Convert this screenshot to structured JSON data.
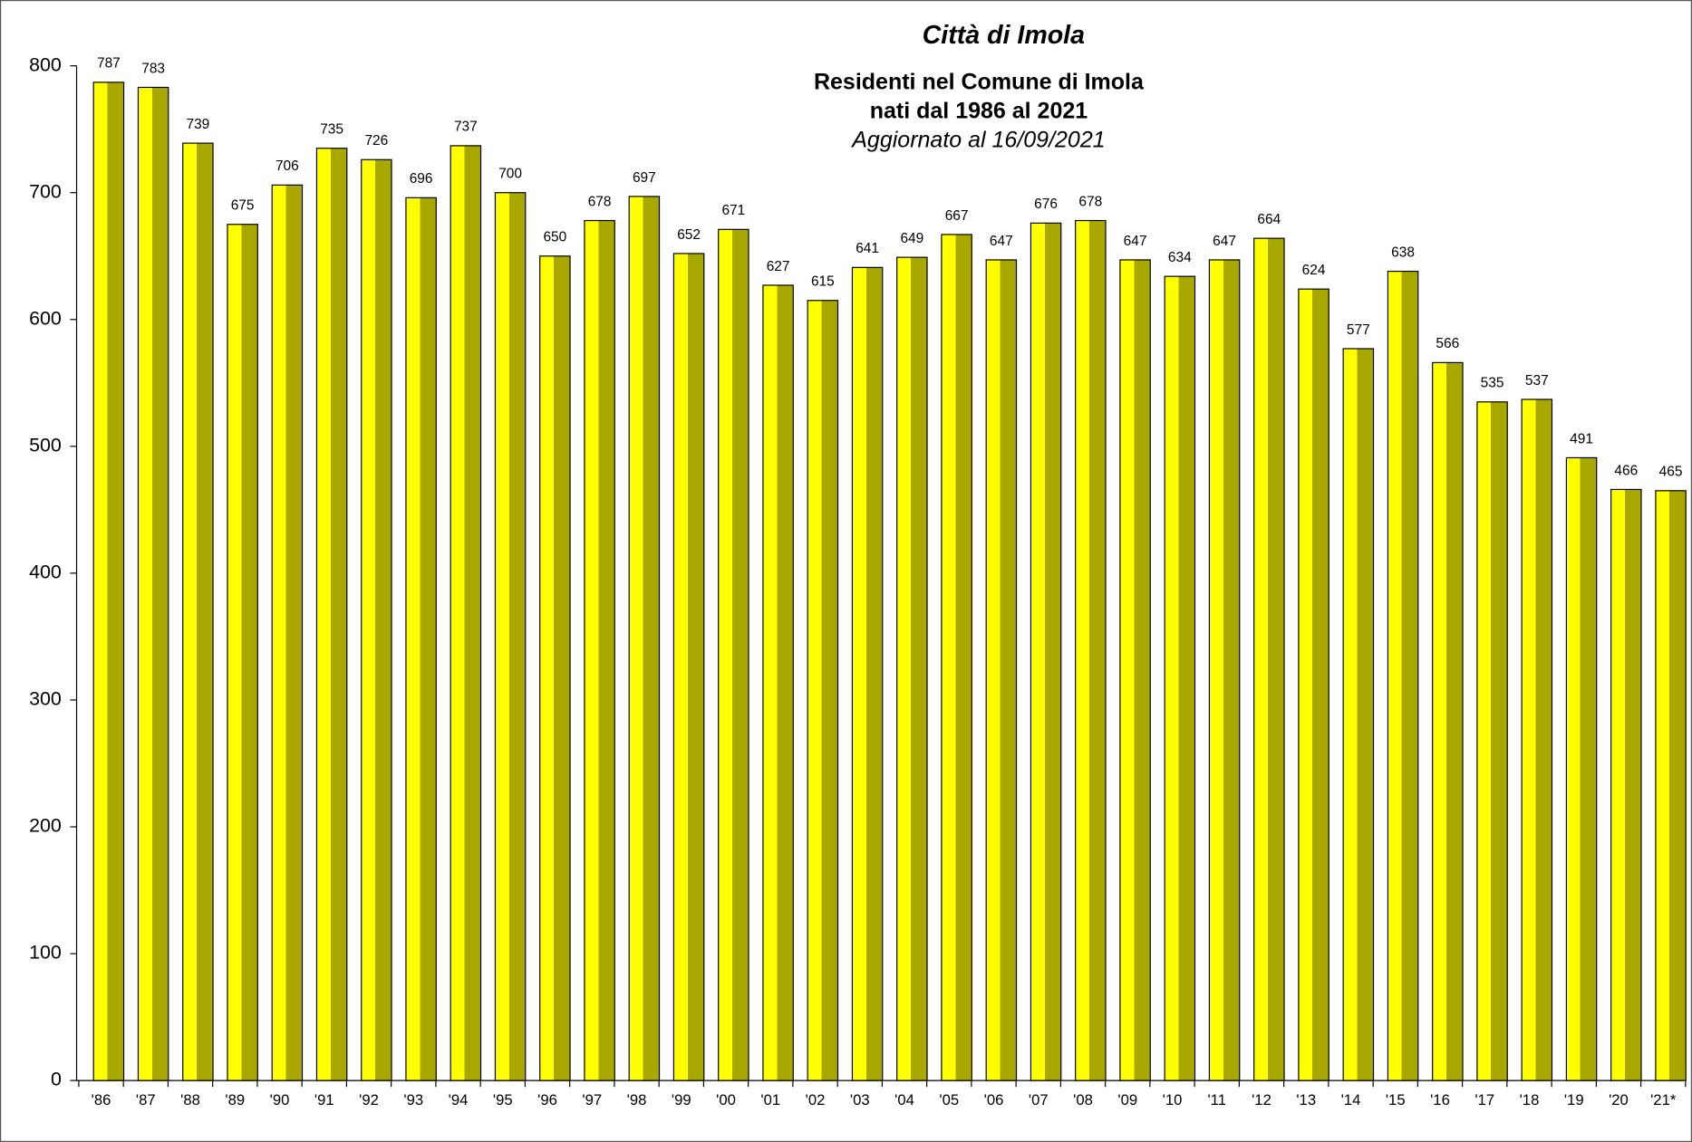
{
  "chart_data": {
    "type": "bar",
    "title": "Città di Imola",
    "subtitle": [
      "Residenti nel Comune di Imola",
      "nati dal 1986 al 2021"
    ],
    "note": "Aggiornato al 16/09/2021",
    "categories": [
      "'86",
      "'87",
      "'88",
      "'89",
      "'90",
      "'91",
      "'92",
      "'93",
      "'94",
      "'95",
      "'96",
      "'97",
      "'98",
      "'99",
      "'00",
      "'01",
      "'02",
      "'03",
      "'04",
      "'05",
      "'06",
      "'07",
      "'08",
      "'09",
      "'10",
      "'11",
      "'12",
      "'13",
      "'14",
      "'15",
      "'16",
      "'17",
      "'18",
      "'19",
      "'20",
      "'21*"
    ],
    "values": [
      787,
      783,
      739,
      675,
      706,
      735,
      726,
      696,
      737,
      700,
      650,
      678,
      697,
      652,
      671,
      627,
      615,
      641,
      649,
      667,
      647,
      676,
      678,
      647,
      634,
      647,
      664,
      624,
      577,
      638,
      566,
      535,
      537,
      491,
      466,
      465
    ],
    "colors": [
      "#ffff00",
      "#a8a800"
    ],
    "ylim": [
      0,
      800
    ],
    "yticks": [
      0,
      100,
      200,
      300,
      400,
      500,
      600,
      700,
      800
    ],
    "grid": false
  }
}
